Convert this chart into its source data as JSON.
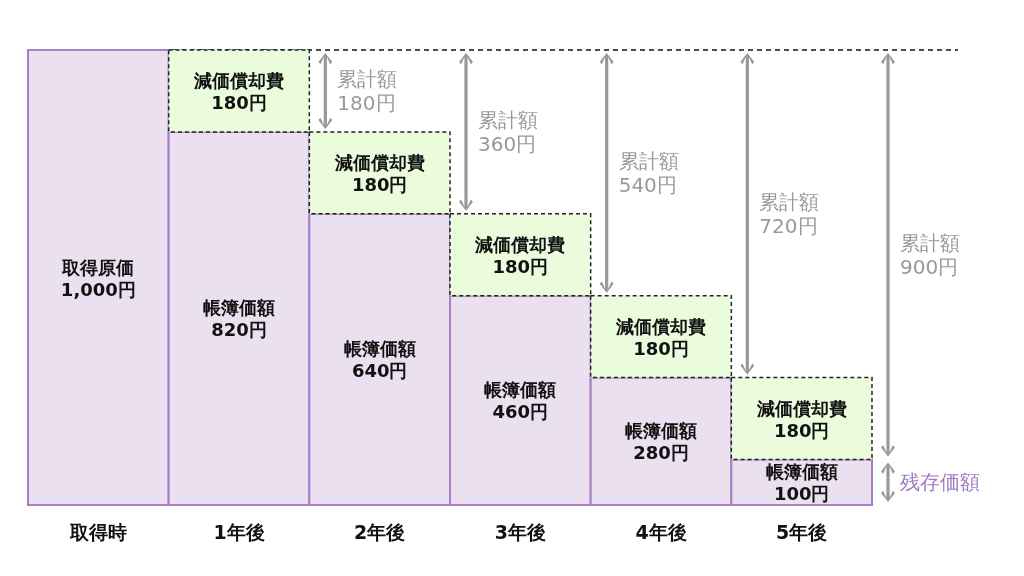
{
  "chart_data": {
    "type": "bar",
    "stacked": true,
    "categories": [
      "取得時",
      "1年後",
      "2年後",
      "3年後",
      "4年後",
      "5年後"
    ],
    "series": [
      {
        "color": "#ebe0ef",
        "values": [
          1000,
          820,
          640,
          460,
          280,
          100
        ],
        "value_labels": [
          "取得原価\n1,000円",
          "帳簿価額\n820円",
          "帳簿価額\n640円",
          "帳簿価額\n460円",
          "帳簿価額\n280円",
          "帳簿価額\n100円"
        ]
      },
      {
        "color": "#eafcdc",
        "values": [
          null,
          180,
          180,
          180,
          180,
          180
        ],
        "value_labels": [
          null,
          "減価償却費\n180円",
          "減価償却費\n180円",
          "減価償却費\n180円",
          "減価償却費\n180円",
          "減価償却費\n180円"
        ]
      }
    ],
    "ref_lines": [
      {
        "axis": "y",
        "value": 1000,
        "line_style": "dashed"
      }
    ],
    "annotations": [
      "累計額\n180円",
      "累計額\n360円",
      "累計額\n540円",
      "累計額\n720円",
      "累計額\n900円",
      "残存価額"
    ]
  }
}
